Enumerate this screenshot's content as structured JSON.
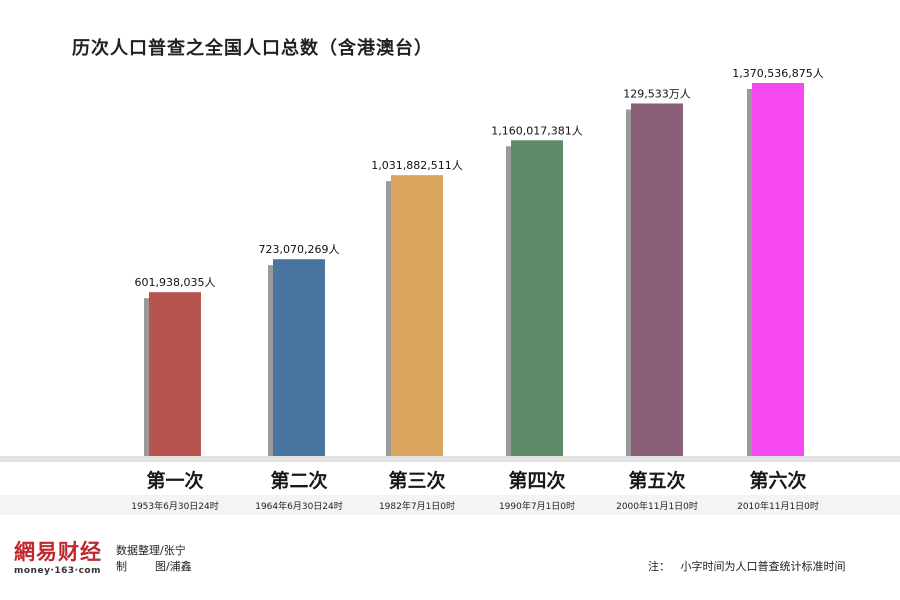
{
  "chart_data": {
    "type": "bar",
    "title": "历次人口普查之全国人口总数（含港澳台）",
    "categories": [
      "第一次",
      "第二次",
      "第三次",
      "第四次",
      "第五次",
      "第六次"
    ],
    "dates": [
      "1953年6月30日24时",
      "1964年6月30日24时",
      "1982年7月1日0时",
      "1990年7月1日0时",
      "2000年11月1日0时",
      "2010年11月1日0时"
    ],
    "values": [
      601938035,
      723070269,
      1031882511,
      1160017381,
      1295330000,
      1370536875
    ],
    "data_labels": [
      "601,938,035人",
      "723,070,269人",
      "1,031,882,511人",
      "1,160,017,381人",
      "129,533万人",
      "1,370,536,875人"
    ],
    "colors": [
      "#b85450",
      "#4a74a0",
      "#d9a45e",
      "#5f8c68",
      "#8b5f78",
      "#f548f0"
    ],
    "ylim": [
      0,
      1400000000
    ],
    "xlabel": "",
    "ylabel": ""
  },
  "credits": {
    "data": "数据整理/张宁",
    "graphics": "制        图/浦鑫"
  },
  "note": "注：   小字时间为人口普查统计标准时间",
  "logo": {
    "main": "網易财经",
    "sub": "money·163·com"
  }
}
